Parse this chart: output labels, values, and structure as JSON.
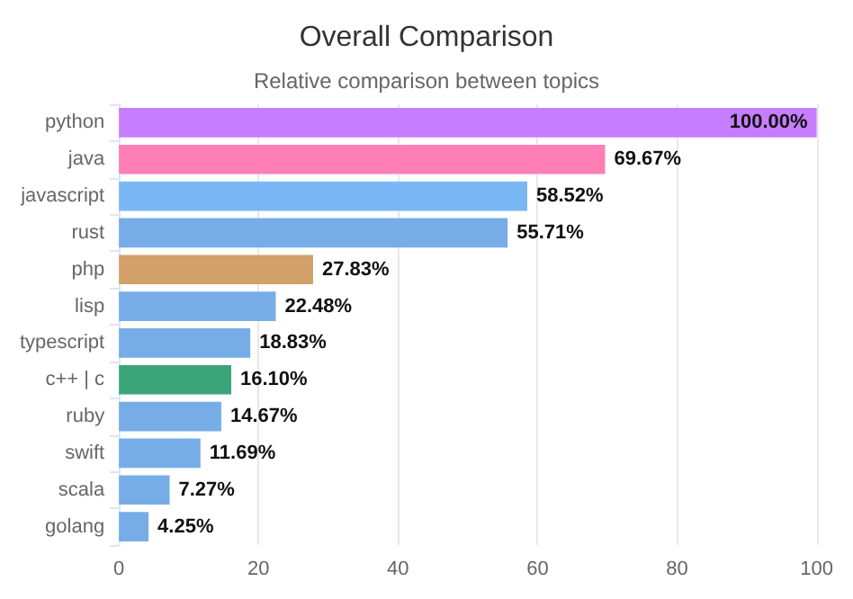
{
  "chart_data": {
    "type": "bar",
    "orientation": "horizontal",
    "title": "Overall Comparison",
    "subtitle": "Relative comparison between topics",
    "categories": [
      "python",
      "java",
      "javascript",
      "rust",
      "php",
      "lisp",
      "typescript",
      "c++ | c",
      "ruby",
      "swift",
      "scala",
      "golang"
    ],
    "values": [
      100,
      69.67,
      58.52,
      55.71,
      27.83,
      22.48,
      18.83,
      16.1,
      14.67,
      11.69,
      7.27,
      4.25
    ],
    "value_labels": [
      "100.00%",
      "69.67%",
      "58.52%",
      "55.71%",
      "27.83%",
      "22.48%",
      "18.83%",
      "16.10%",
      "14.67%",
      "11.69%",
      "7.27%",
      "4.25%"
    ],
    "colors": [
      "#c77dff",
      "#ff7eb6",
      "#7ab8f5",
      "#76ade6",
      "#d4a06a",
      "#76ade6",
      "#76ade6",
      "#3aa57a",
      "#76ade6",
      "#76ade6",
      "#76ade6",
      "#76ade6"
    ],
    "xlim": [
      0,
      100
    ],
    "xticks": [
      0,
      20,
      40,
      60,
      80,
      100
    ],
    "grid": "x"
  }
}
